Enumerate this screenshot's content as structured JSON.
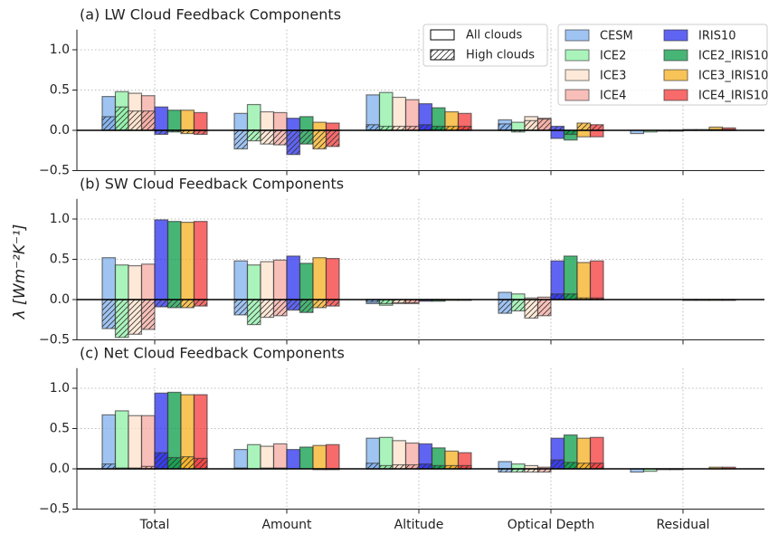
{
  "chart_data": [
    {
      "type": "bar",
      "title": "(a) LW Cloud Feedback Components",
      "ylim": [
        -0.5,
        1.25
      ],
      "yticks": [
        {
          "value": -0.5,
          "label": "−0.5"
        },
        {
          "value": 0,
          "label": "0.0"
        },
        {
          "value": 0.5,
          "label": "0.5"
        },
        {
          "value": 1,
          "label": "1.0"
        }
      ],
      "grid": true,
      "style_legend": [
        "All clouds",
        "High clouds"
      ],
      "series": [
        {
          "name": "CESM",
          "color": "#7fb0ee",
          "values": [
            0.42,
            0.21,
            0.44,
            0.13,
            -0.04
          ],
          "high_clouds_values": [
            0.17,
            -0.23,
            0.07,
            0.08,
            0
          ]
        },
        {
          "name": "ICE2",
          "color": "#8ef0a6",
          "values": [
            0.48,
            0.32,
            0.47,
            0.1,
            -0.02
          ],
          "high_clouds_values": [
            0.29,
            -0.13,
            0.05,
            -0.02,
            0
          ]
        },
        {
          "name": "ICE3",
          "color": "#fde2cb",
          "values": [
            0.46,
            0.23,
            0.41,
            0.17,
            -0.01
          ],
          "high_clouds_values": [
            0.24,
            -0.17,
            0.05,
            0.12,
            0
          ]
        },
        {
          "name": "ICE4",
          "color": "#f6aaa2",
          "values": [
            0.43,
            0.22,
            0.38,
            0.15,
            -0.01
          ],
          "high_clouds_values": [
            0.24,
            -0.18,
            0.05,
            0.14,
            0
          ]
        },
        {
          "name": "IRIS10",
          "color": "#2b30ee",
          "values": [
            0.29,
            0.15,
            0.33,
            -0.1,
            0.01
          ],
          "high_clouds_values": [
            -0.05,
            -0.3,
            0.07,
            0.05,
            0
          ]
        },
        {
          "name": "ICE2_IRIS10",
          "color": "#0a9c48",
          "values": [
            0.25,
            0.17,
            0.28,
            -0.12,
            0.01
          ],
          "high_clouds_values": [
            -0.02,
            -0.17,
            0.05,
            -0.05,
            0
          ]
        },
        {
          "name": "ICE3_IRIS10",
          "color": "#f6b020",
          "values": [
            0.25,
            0.1,
            0.23,
            -0.08,
            0.04
          ],
          "high_clouds_values": [
            -0.04,
            -0.23,
            0.05,
            0.09,
            0.01
          ]
        },
        {
          "name": "ICE4_IRIS10",
          "color": "#f53a3a",
          "values": [
            0.22,
            0.09,
            0.21,
            -0.08,
            0.03
          ],
          "high_clouds_values": [
            -0.05,
            -0.2,
            0.05,
            0.07,
            0.01
          ]
        }
      ]
    },
    {
      "type": "bar",
      "title": "(b) SW Cloud Feedback Components",
      "ylabel": "λ  [Wm⁻²K⁻¹]",
      "ylim": [
        -0.5,
        1.25
      ],
      "yticks": [
        {
          "value": -0.5,
          "label": "−0.5"
        },
        {
          "value": 0,
          "label": "0.0"
        },
        {
          "value": 0.5,
          "label": "0.5"
        },
        {
          "value": 1,
          "label": "1.0"
        }
      ],
      "grid": true,
      "series": [
        {
          "name": "CESM",
          "color": "#7fb0ee",
          "values": [
            0.52,
            0.48,
            -0.05,
            0.09,
            0
          ],
          "high_clouds_values": [
            -0.36,
            -0.19,
            -0.03,
            -0.17,
            0
          ]
        },
        {
          "name": "ICE2",
          "color": "#8ef0a6",
          "values": [
            0.43,
            0.43,
            -0.07,
            0.07,
            0
          ],
          "high_clouds_values": [
            -0.47,
            -0.31,
            -0.05,
            -0.14,
            0
          ]
        },
        {
          "name": "ICE3",
          "color": "#fde2cb",
          "values": [
            0.42,
            0.47,
            -0.05,
            0.02,
            0
          ],
          "high_clouds_values": [
            -0.43,
            -0.22,
            -0.04,
            -0.23,
            0
          ]
        },
        {
          "name": "ICE4",
          "color": "#f6aaa2",
          "values": [
            0.44,
            0.49,
            -0.05,
            0.03,
            0
          ],
          "high_clouds_values": [
            -0.37,
            -0.2,
            -0.04,
            -0.2,
            0
          ]
        },
        {
          "name": "IRIS10",
          "color": "#2b30ee",
          "values": [
            0.99,
            0.54,
            -0.02,
            0.48,
            -0.01
          ],
          "high_clouds_values": [
            -0.09,
            -0.13,
            -0.01,
            0.07,
            0
          ]
        },
        {
          "name": "ICE2_IRIS10",
          "color": "#0a9c48",
          "values": [
            0.97,
            0.45,
            -0.02,
            0.54,
            -0.01
          ],
          "high_clouds_values": [
            -0.1,
            -0.16,
            -0.01,
            0.07,
            0
          ]
        },
        {
          "name": "ICE3_IRIS10",
          "color": "#f6b020",
          "values": [
            0.96,
            0.52,
            -0.01,
            0.46,
            -0.01
          ],
          "high_clouds_values": [
            -0.1,
            -0.1,
            0,
            0.02,
            0
          ]
        },
        {
          "name": "ICE4_IRIS10",
          "color": "#f53a3a",
          "values": [
            0.97,
            0.51,
            -0.01,
            0.48,
            -0.01
          ],
          "high_clouds_values": [
            -0.08,
            -0.08,
            0,
            0.02,
            0
          ]
        }
      ]
    },
    {
      "type": "bar",
      "title": "(c) Net Cloud Feedback Components",
      "categories": [
        "Total",
        "Amount",
        "Altitude",
        "Optical Depth",
        "Residual"
      ],
      "ylim": [
        -0.5,
        1.25
      ],
      "yticks": [
        {
          "value": -0.5,
          "label": "−0.5"
        },
        {
          "value": 0,
          "label": "0.0"
        },
        {
          "value": 0.5,
          "label": "0.5"
        },
        {
          "value": 1,
          "label": "1.0"
        }
      ],
      "grid": true,
      "series": [
        {
          "name": "CESM",
          "color": "#7fb0ee",
          "values": [
            0.67,
            0.24,
            0.38,
            0.09,
            -0.04
          ],
          "high_clouds_values": [
            0.06,
            0.01,
            0.07,
            -0.04,
            0
          ]
        },
        {
          "name": "ICE2",
          "color": "#8ef0a6",
          "values": [
            0.72,
            0.3,
            0.39,
            0.06,
            -0.03
          ],
          "high_clouds_values": [
            0.01,
            0,
            0.04,
            -0.04,
            0
          ]
        },
        {
          "name": "ICE3",
          "color": "#fde2cb",
          "values": [
            0.66,
            0.28,
            0.35,
            0.04,
            -0.01
          ],
          "high_clouds_values": [
            0.01,
            0.01,
            0.05,
            -0.04,
            0
          ]
        },
        {
          "name": "ICE4",
          "color": "#f6aaa2",
          "values": [
            0.66,
            0.31,
            0.32,
            0.02,
            -0.01
          ],
          "high_clouds_values": [
            0.03,
            0.01,
            0.05,
            -0.04,
            0
          ]
        },
        {
          "name": "IRIS10",
          "color": "#2b30ee",
          "values": [
            0.94,
            0.24,
            0.31,
            0.38,
            0
          ],
          "high_clouds_values": [
            0.2,
            0,
            0.06,
            0.11,
            0
          ]
        },
        {
          "name": "ICE2_IRIS10",
          "color": "#0a9c48",
          "values": [
            0.95,
            0.27,
            0.26,
            0.42,
            0
          ],
          "high_clouds_values": [
            0.14,
            0,
            0.04,
            0.08,
            0
          ]
        },
        {
          "name": "ICE3_IRIS10",
          "color": "#f6b020",
          "values": [
            0.92,
            0.29,
            0.22,
            0.38,
            0.02
          ],
          "high_clouds_values": [
            0.15,
            -0.01,
            0.04,
            0.07,
            0
          ]
        },
        {
          "name": "ICE4_IRIS10",
          "color": "#f53a3a",
          "values": [
            0.92,
            0.3,
            0.2,
            0.39,
            0.02
          ],
          "high_clouds_values": [
            0.13,
            -0.01,
            0.04,
            0.07,
            0
          ]
        }
      ]
    }
  ]
}
